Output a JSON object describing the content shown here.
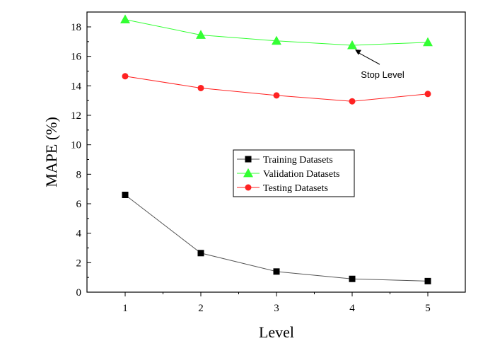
{
  "chart_data": {
    "type": "line",
    "xlabel": "Level",
    "ylabel": "MAPE (%)",
    "x": [
      1,
      2,
      3,
      4,
      5
    ],
    "xticks": [
      "1",
      "2",
      "3",
      "4",
      "5"
    ],
    "xlim": [
      0.5,
      5.5
    ],
    "ylim": [
      0,
      19
    ],
    "yticks": [
      0,
      2,
      4,
      6,
      8,
      10,
      12,
      14,
      16,
      18
    ],
    "grid": false,
    "legend_position": "center-right",
    "series": [
      {
        "name": "Training Datasets",
        "values": [
          6.6,
          2.65,
          1.4,
          0.9,
          0.75
        ],
        "color": "#000000",
        "line_color": "#555555",
        "marker": "square"
      },
      {
        "name": "Validation Datasets",
        "values": [
          18.5,
          17.45,
          17.05,
          16.75,
          16.95
        ],
        "color": "#33ff33",
        "line_color": "#33ff33",
        "marker": "triangle"
      },
      {
        "name": "Testing Datasets",
        "values": [
          14.65,
          13.85,
          13.35,
          12.95,
          13.45
        ],
        "color": "#ff2222",
        "line_color": "#ff2222",
        "marker": "circle"
      }
    ],
    "annotations": [
      {
        "text": "Stop Level",
        "x": 4,
        "y": 16.75
      }
    ]
  }
}
